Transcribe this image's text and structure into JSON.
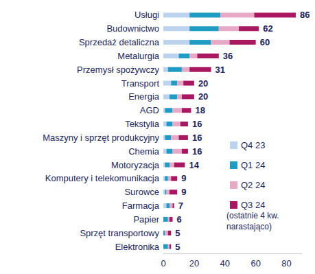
{
  "chart_data": {
    "type": "bar",
    "orientation": "horizontal",
    "stacked": true,
    "categories": [
      "Usługi",
      "Budownictwo",
      "Sprzedaż detaliczna",
      "Metalurgia",
      "Przemysł spożywczy",
      "Transport",
      "Energia",
      "AGD",
      "Tekstylia",
      "Maszyny i sprzęt produkcyjny",
      "Chemia",
      "Motoryzacja",
      "Komputery i telekomunikacja",
      "Surowce",
      "Farmacja",
      "Papier",
      "Sprzęt transportowy",
      "Elektronika"
    ],
    "series": [
      {
        "name": "Q4 23",
        "color": "#bcd3f0",
        "values": [
          17,
          17,
          17,
          10,
          3,
          5,
          4,
          1,
          2,
          1,
          2,
          1,
          1,
          1,
          2,
          0,
          0,
          0
        ]
      },
      {
        "name": "Q1 24",
        "color": "#1f9cc4",
        "values": [
          20,
          19,
          14,
          7,
          9,
          4,
          5,
          5,
          4,
          4,
          4,
          3,
          2,
          1,
          2,
          3,
          1,
          3
        ]
      },
      {
        "name": "Q2 24",
        "color": "#e8a9c7",
        "values": [
          22,
          13,
          12,
          5,
          5,
          4,
          3,
          6,
          5,
          5,
          6,
          3,
          2,
          2,
          2,
          1,
          2,
          1
        ]
      },
      {
        "name": "Q3 24",
        "color": "#a8175f",
        "values": [
          27,
          13,
          17,
          14,
          14,
          7,
          8,
          6,
          5,
          6,
          4,
          7,
          4,
          5,
          1,
          2,
          2,
          1
        ]
      }
    ],
    "totals": [
      86,
      62,
      60,
      36,
      31,
      20,
      20,
      18,
      16,
      16,
      16,
      14,
      9,
      9,
      7,
      6,
      5,
      5
    ],
    "xlim": [
      0,
      90
    ],
    "xticks": [
      0,
      20,
      40,
      60,
      80
    ],
    "grid": false,
    "legend": "right",
    "annotation": "(ostatnie 4 kw.\nnarastająco)"
  }
}
